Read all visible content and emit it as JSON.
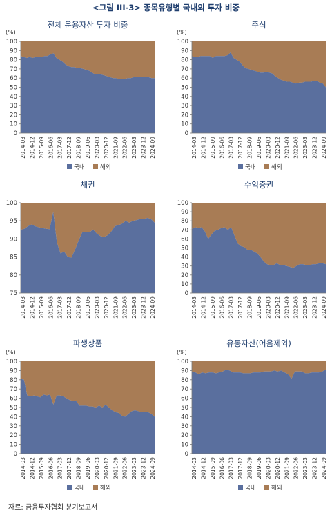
{
  "page": {
    "title": "<그림 III-3> 종목유형별 국내외 투자 비중",
    "source": "자료: 금융투자협회 분기보고서"
  },
  "chart_data": [
    {
      "type": "area",
      "title": "전체 운용자산 투자 비중",
      "ylabel": "(%)",
      "ylim": [
        0,
        100
      ],
      "yticks": [
        0,
        10,
        20,
        30,
        40,
        50,
        60,
        70,
        80,
        90,
        100
      ],
      "xticks": [
        "2014-03",
        "2014-12",
        "2015-09",
        "2016-06",
        "2017-03",
        "2017-12",
        "2018-09",
        "2019-06",
        "2020-03",
        "2020-12",
        "2021-09",
        "2022-06",
        "2023-03",
        "2023-12",
        "2024-09"
      ],
      "series": [
        {
          "name": "국내",
          "color": "#5a6f9e",
          "values": [
            84,
            83,
            82,
            83,
            82,
            83,
            83,
            83,
            84,
            84,
            86,
            87,
            82,
            80,
            78,
            75,
            73,
            72,
            72,
            71,
            71,
            70,
            69,
            68,
            66,
            64,
            64,
            64,
            63,
            62,
            61,
            60,
            60,
            59,
            59,
            59,
            60,
            60,
            61,
            61,
            61,
            61,
            61,
            61,
            60,
            60
          ]
        },
        {
          "name": "해외",
          "color": "#a87c55",
          "values": [
            16,
            17,
            18,
            17,
            18,
            17,
            17,
            17,
            16,
            16,
            14,
            13,
            18,
            20,
            22,
            25,
            27,
            28,
            28,
            29,
            29,
            30,
            31,
            32,
            34,
            36,
            36,
            36,
            37,
            38,
            39,
            40,
            40,
            41,
            41,
            41,
            40,
            40,
            39,
            39,
            39,
            39,
            39,
            39,
            40,
            40
          ]
        }
      ],
      "legend": [
        "국내",
        "해외"
      ]
    },
    {
      "type": "area",
      "title": "주식",
      "ylabel": "(%)",
      "ylim": [
        0,
        100
      ],
      "yticks": [
        0,
        10,
        20,
        30,
        40,
        50,
        60,
        70,
        80,
        90,
        100
      ],
      "xticks": [
        "2014-03",
        "2014-12",
        "2015-09",
        "2016-06",
        "2017-03",
        "2017-12",
        "2018-09",
        "2019-06",
        "2020-03",
        "2020-12",
        "2021-09",
        "2022-06",
        "2023-03",
        "2023-12",
        "2024-09"
      ],
      "series": [
        {
          "name": "국내",
          "color": "#5a6f9e",
          "values": [
            84,
            83,
            83,
            84,
            84,
            84,
            84,
            82,
            84,
            84,
            84,
            84,
            85,
            88,
            82,
            80,
            78,
            74,
            71,
            70,
            69,
            68,
            67,
            66,
            66,
            67,
            66,
            65,
            62,
            60,
            58,
            57,
            56,
            56,
            55,
            54,
            55,
            55,
            56,
            56,
            56,
            57,
            57,
            55,
            54,
            50
          ]
        },
        {
          "name": "해외",
          "color": "#a87c55",
          "values": [
            16,
            17,
            17,
            16,
            16,
            16,
            16,
            18,
            16,
            16,
            16,
            16,
            15,
            12,
            18,
            20,
            22,
            26,
            29,
            30,
            31,
            32,
            33,
            34,
            34,
            33,
            34,
            35,
            38,
            40,
            42,
            43,
            44,
            44,
            45,
            46,
            45,
            45,
            44,
            44,
            44,
            43,
            43,
            45,
            46,
            50
          ]
        }
      ],
      "legend": [
        "국내",
        "해외"
      ]
    },
    {
      "type": "area",
      "title": "채권",
      "ylabel": "",
      "ylim": [
        75,
        100
      ],
      "yticks": [
        75,
        80,
        85,
        90,
        95,
        100
      ],
      "xticks": [
        "2014-03",
        "2014-12",
        "2015-09",
        "2016-06",
        "2017-03",
        "2017-12",
        "2018-09",
        "2019-06",
        "2020-03",
        "2020-12",
        "2021-09",
        "2022-06",
        "2023-03",
        "2023-12",
        "2024-09"
      ],
      "series": [
        {
          "name": "국내",
          "color": "#5a6f9e",
          "values": [
            92.5,
            92.8,
            93.5,
            94.0,
            93.5,
            93.2,
            93.0,
            92.8,
            92.7,
            97.5,
            89.0,
            86.0,
            86.5,
            85.0,
            84.8,
            87.0,
            89.5,
            91.8,
            92.0,
            91.8,
            92.6,
            91.5,
            90.8,
            90.5,
            91.0,
            92.0,
            93.5,
            93.8,
            94.2,
            95.0,
            94.5,
            95.0,
            95.2,
            95.5,
            95.5,
            95.8,
            95.5,
            94.5
          ]
        },
        {
          "name": "해외",
          "color": "#a87c55",
          "values": [
            7.5,
            7.2,
            6.5,
            6.0,
            6.5,
            6.8,
            7.0,
            7.2,
            7.3,
            2.5,
            11.0,
            14.0,
            13.5,
            15.0,
            15.2,
            13.0,
            10.5,
            8.2,
            8.0,
            8.2,
            7.4,
            8.5,
            9.2,
            9.5,
            9.0,
            8.0,
            6.5,
            6.2,
            5.8,
            5.0,
            5.5,
            5.0,
            4.8,
            4.5,
            4.5,
            4.2,
            4.5,
            5.5
          ]
        }
      ],
      "legend": []
    },
    {
      "type": "area",
      "title": "수익증권",
      "ylabel": "",
      "ylim": [
        0,
        100
      ],
      "yticks": [
        0,
        10,
        20,
        30,
        40,
        50,
        60,
        70,
        80,
        90,
        100
      ],
      "xticks": [
        "2014-03",
        "2014-12",
        "2015-09",
        "2016-06",
        "2017-03",
        "2017-12",
        "2018-09",
        "2019-06",
        "2020-03",
        "2020-12",
        "2021-09",
        "2022-06",
        "2023-03",
        "2023-12",
        "2024-09"
      ],
      "series": [
        {
          "name": "국내",
          "color": "#5a6f9e",
          "values": [
            71,
            73,
            72,
            73,
            68,
            60,
            65,
            69,
            70,
            72,
            73,
            70,
            73,
            64,
            55,
            52,
            51,
            48,
            48,
            46,
            44,
            40,
            35,
            32,
            31,
            31,
            33,
            31,
            31,
            30,
            29,
            28,
            30,
            32,
            32,
            31,
            31,
            32,
            32,
            33,
            33,
            32
          ]
        },
        {
          "name": "해외",
          "color": "#a87c55",
          "values": [
            29,
            27,
            28,
            27,
            32,
            40,
            35,
            31,
            30,
            28,
            27,
            30,
            27,
            36,
            45,
            48,
            49,
            52,
            52,
            54,
            56,
            60,
            65,
            68,
            69,
            69,
            67,
            69,
            69,
            70,
            71,
            72,
            70,
            68,
            68,
            69,
            69,
            68,
            68,
            67,
            67,
            68
          ]
        }
      ],
      "legend": []
    },
    {
      "type": "area",
      "title": "파생상품",
      "ylabel": "(%)",
      "ylim": [
        0,
        100
      ],
      "yticks": [
        0,
        10,
        20,
        30,
        40,
        50,
        60,
        70,
        80,
        90,
        100
      ],
      "xticks": [
        "2014-03",
        "2014-12",
        "2015-09",
        "2016-06",
        "2017-03",
        "2017-12",
        "2018-09",
        "2019-06",
        "2020-03",
        "2020-12",
        "2021-09",
        "2022-06",
        "2023-03",
        "2023-12",
        "2024-09"
      ],
      "series": [
        {
          "name": "국내",
          "color": "#5a6f9e",
          "values": [
            81,
            80,
            63,
            62,
            63,
            62,
            61,
            64,
            63,
            64,
            53,
            63,
            63,
            62,
            60,
            58,
            57,
            57,
            52,
            52,
            52,
            51,
            51,
            50,
            52,
            50,
            53,
            50,
            47,
            45,
            44,
            41,
            40,
            43,
            46,
            47,
            46,
            45,
            45,
            45,
            43,
            40
          ]
        },
        {
          "name": "해외",
          "color": "#a87c55",
          "values": [
            19,
            20,
            37,
            38,
            37,
            38,
            39,
            36,
            37,
            36,
            47,
            37,
            37,
            38,
            40,
            42,
            43,
            43,
            48,
            48,
            48,
            49,
            49,
            50,
            48,
            50,
            47,
            50,
            53,
            55,
            56,
            59,
            60,
            57,
            54,
            53,
            54,
            55,
            55,
            55,
            57,
            60
          ]
        }
      ],
      "legend": [
        "국내",
        "해외"
      ]
    },
    {
      "type": "area",
      "title": "유동자산(어음제외)",
      "ylabel": "(%)",
      "ylim": [
        0,
        100
      ],
      "yticks": [
        0,
        10,
        20,
        30,
        40,
        50,
        60,
        70,
        80,
        90,
        100
      ],
      "xticks": [
        "2014-03",
        "2014-12",
        "2015-09",
        "2016-06",
        "2017-03",
        "2017-12",
        "2018-09",
        "2019-06",
        "2020-03",
        "2020-12",
        "2021-09",
        "2022-06",
        "2023-03",
        "2023-12",
        "2024-09"
      ],
      "series": [
        {
          "name": "국내",
          "color": "#5a6f9e",
          "values": [
            89,
            88,
            86,
            88,
            87,
            88,
            88,
            87,
            88,
            89,
            91,
            90,
            88,
            88,
            88,
            87,
            87,
            87,
            88,
            88,
            88,
            89,
            89,
            89,
            90,
            89,
            90,
            88,
            86,
            81,
            89,
            89,
            89,
            87,
            87,
            88,
            88,
            88,
            89,
            91
          ]
        },
        {
          "name": "해외",
          "color": "#a87c55",
          "values": [
            11,
            12,
            14,
            12,
            13,
            12,
            12,
            13,
            12,
            11,
            9,
            10,
            12,
            12,
            12,
            13,
            13,
            13,
            12,
            12,
            12,
            11,
            11,
            11,
            10,
            11,
            10,
            12,
            14,
            19,
            11,
            11,
            11,
            13,
            13,
            12,
            12,
            12,
            11,
            9
          ]
        }
      ],
      "legend": [
        "국내",
        "해외"
      ]
    }
  ]
}
